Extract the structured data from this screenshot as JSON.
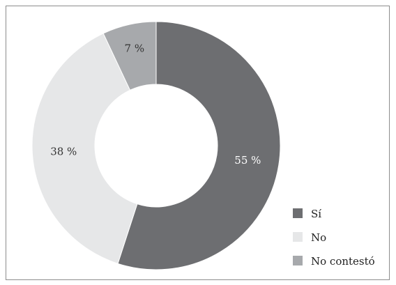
{
  "chart_data": {
    "type": "pie",
    "categories": [
      "Sí",
      "No",
      "No contestó"
    ],
    "values": [
      55,
      38,
      7
    ],
    "labels": [
      "55 %",
      "38 %",
      "7 %"
    ],
    "colors": [
      "#6d6e71",
      "#e6e7e8",
      "#a7a9ac"
    ],
    "label_colors": [
      "#ffffff",
      "#333333",
      "#333333"
    ],
    "donut": true,
    "legend": {
      "position": "bottom-right",
      "items": [
        "Sí",
        "No",
        "No contestó"
      ]
    },
    "title": ""
  }
}
